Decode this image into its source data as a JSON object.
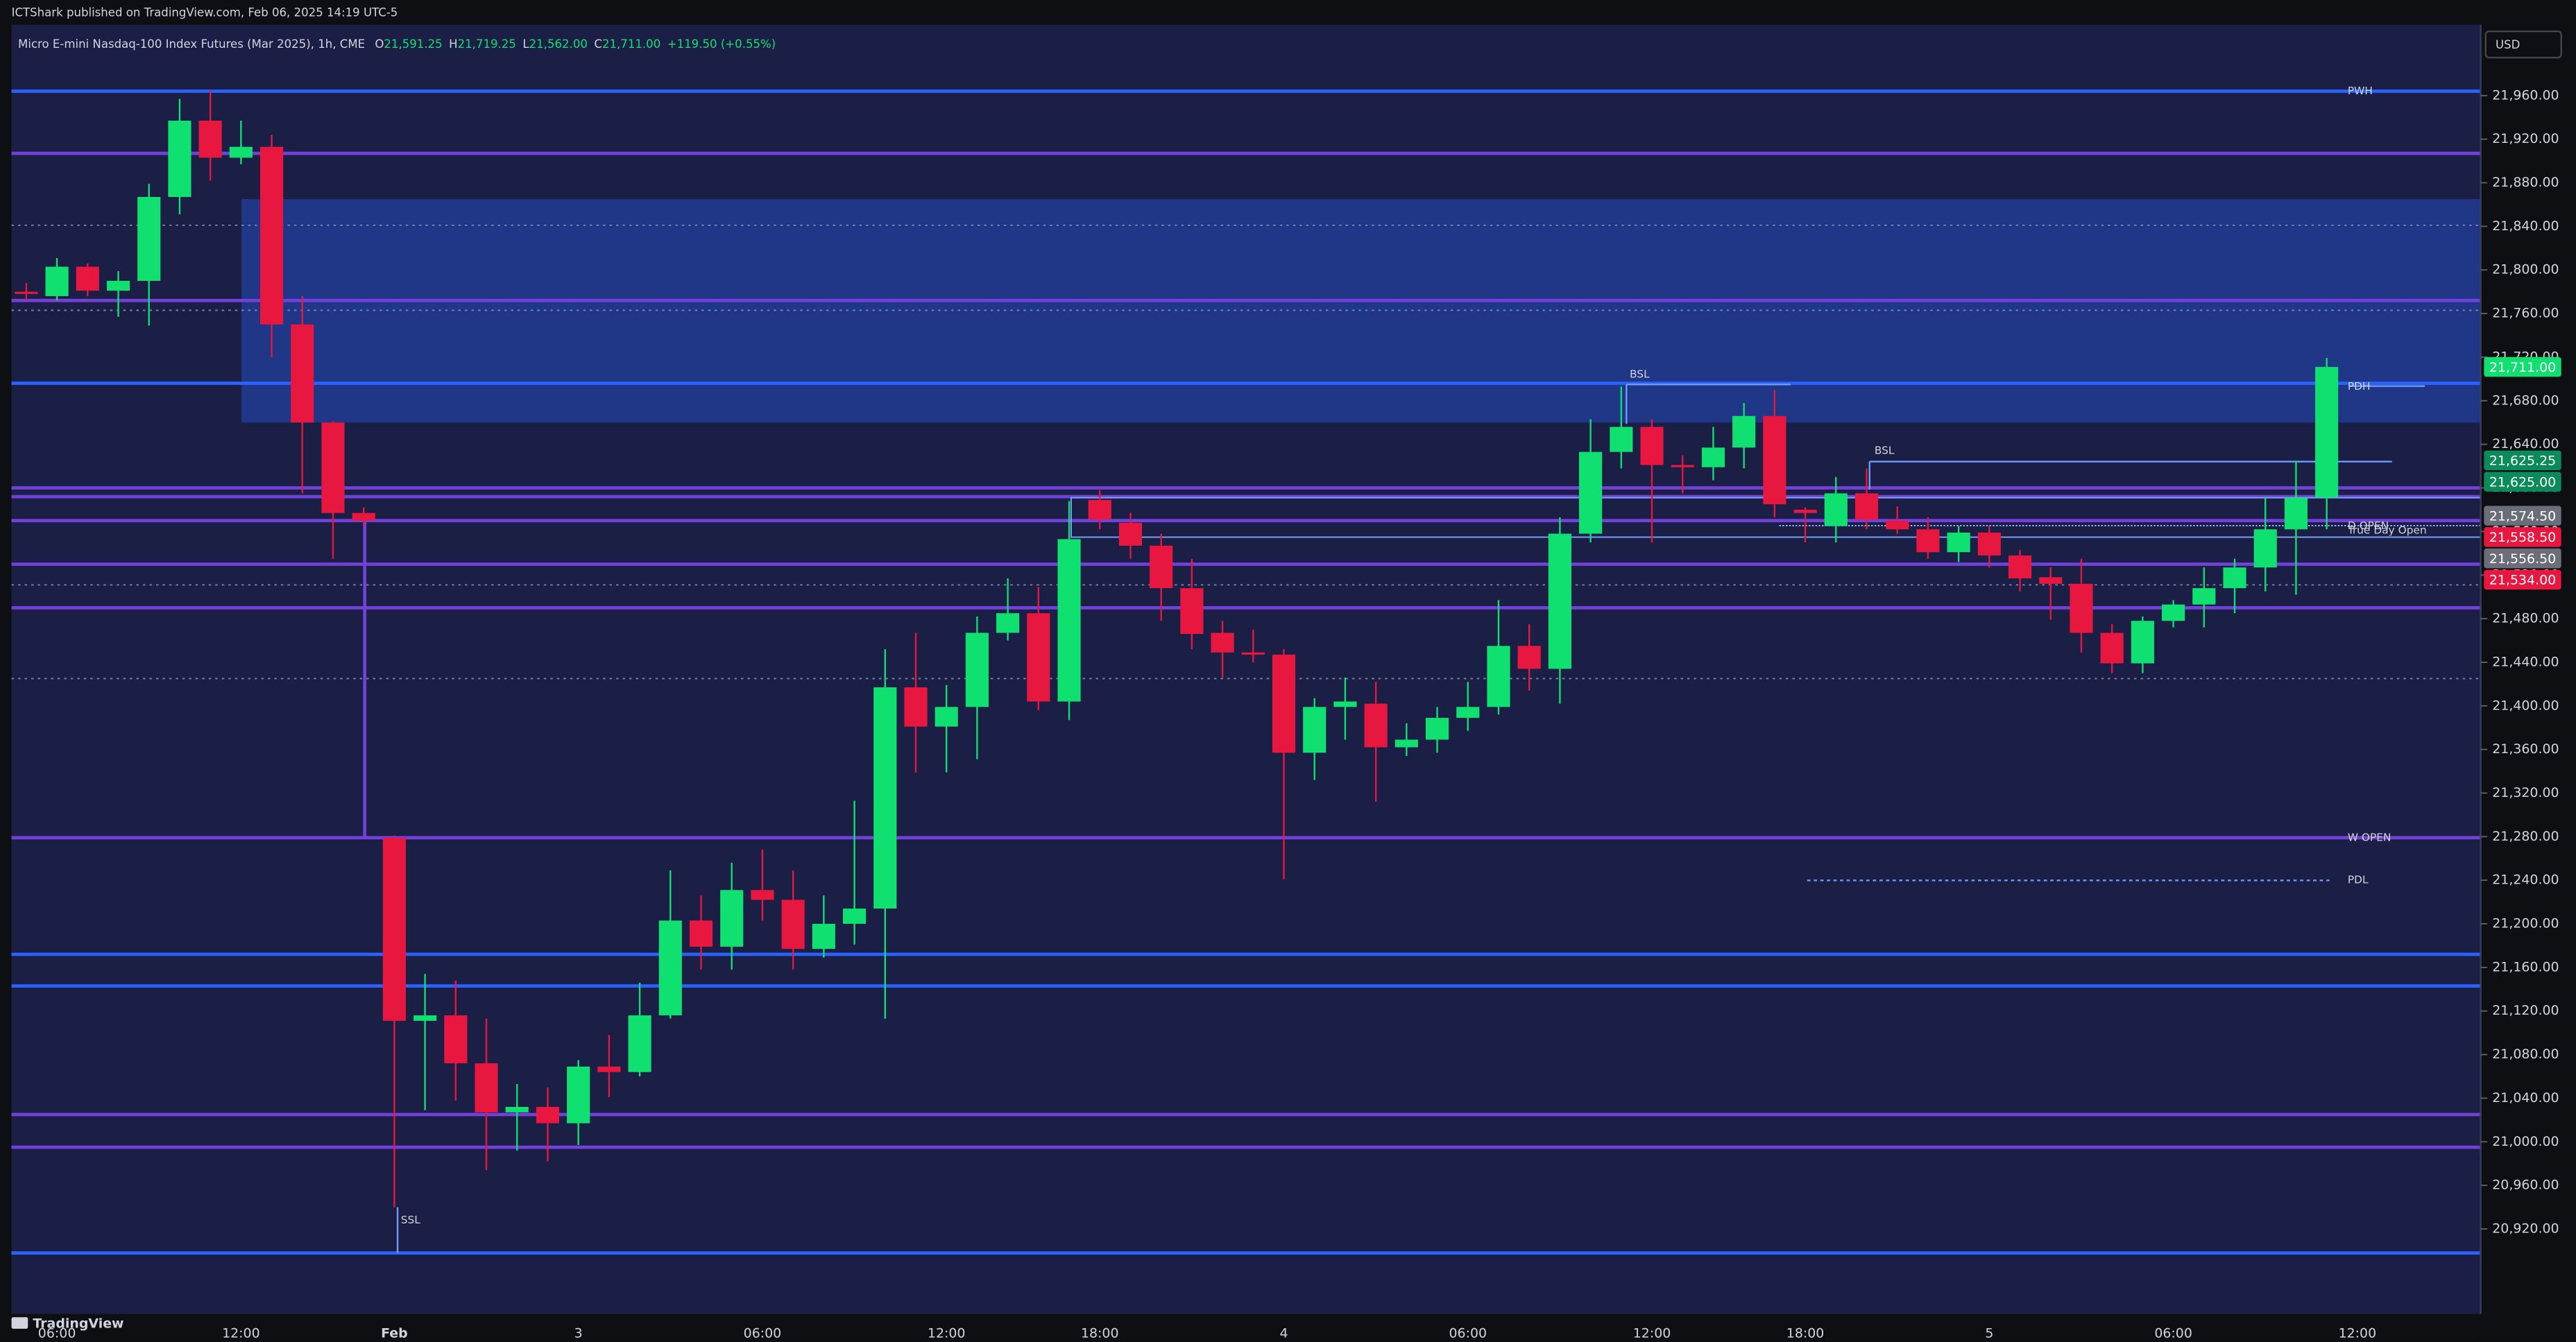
{
  "chart_data": {
    "type": "candlestick",
    "header": "ICTShark published on TradingView.com, Feb 06, 2025 14:19 UTC-5",
    "legend": {
      "symbol": "Micro E-mini Nasdaq-100 Index Futures (Mar 2025), 1h, CME",
      "items": [
        {
          "key": "O",
          "value": "21,591.25"
        },
        {
          "key": "H",
          "value": "21,719.25"
        },
        {
          "key": "L",
          "value": "21,562.00"
        },
        {
          "key": "C",
          "value": "21,711.00"
        }
      ],
      "change": "+119.50 (+0.55%)"
    },
    "currency": "USD",
    "footer": "TradingView",
    "up_color": "#0fe070",
    "down_color": "#e8173f",
    "categories": [
      null,
      "06:00",
      null,
      null,
      null,
      null,
      null,
      "12:00",
      null,
      null,
      null,
      null,
      "Feb",
      null,
      null,
      null,
      null,
      null,
      "3",
      null,
      null,
      null,
      null,
      null,
      "06:00",
      null,
      null,
      null,
      null,
      null,
      "12:00",
      null,
      null,
      null,
      null,
      "18:00",
      null,
      null,
      null,
      null,
      null,
      "4",
      null,
      null,
      null,
      null,
      null,
      "06:00",
      null,
      null,
      null,
      null,
      null,
      "12:00",
      null,
      null,
      null,
      null,
      "18:00",
      null,
      null,
      null,
      null,
      null,
      "5",
      null,
      null,
      null,
      null,
      null,
      "06:00",
      null,
      null,
      null,
      null,
      null,
      "12:00"
    ],
    "open": [
      21780,
      21776,
      21803,
      21781,
      21790,
      21867,
      21937,
      21903,
      21913,
      21750,
      21660,
      21577,
      21279,
      21111,
      21116,
      21072,
      21027,
      21032,
      21017,
      21069,
      21064,
      21116,
      21203,
      21179,
      21231,
      21222,
      21177,
      21200,
      21214,
      21417,
      21381,
      21399,
      21467,
      21485,
      21404,
      21589,
      21568,
      21547,
      21508,
      21467,
      21449,
      21447,
      21357,
      21399,
      21402,
      21362,
      21369,
      21389,
      21399,
      21455,
      21434,
      21558,
      21633,
      21656,
      21621,
      21619,
      21637,
      21666,
      21580,
      21565,
      21595,
      21570,
      21562,
      21541,
      21559,
      21538,
      21518,
      21512,
      21467,
      21439,
      21478,
      21493,
      21508,
      21527,
      21562,
      21591.25,
      null
    ],
    "high": [
      21788,
      21811,
      21806,
      21799,
      21879,
      21957,
      21965,
      21937,
      21924,
      21776,
      21661,
      21582,
      21281,
      21154,
      21148,
      21113,
      21053,
      21050,
      21075,
      21098,
      21146,
      21249,
      21226,
      21256,
      21268,
      21249,
      21226,
      21313,
      21452,
      21467,
      21419,
      21482,
      21517,
      21509,
      21588,
      21598,
      21577,
      21558,
      21535,
      21478,
      21470,
      21452,
      21407,
      21426,
      21422,
      21384,
      21399,
      21422,
      21497,
      21475,
      21573,
      21663,
      21693,
      21663,
      21630,
      21656,
      21678,
      21690,
      21582,
      21610,
      21618,
      21583,
      21573,
      21565,
      21565,
      21543,
      21527,
      21535,
      21475,
      21482,
      21497,
      21527,
      21535,
      21591,
      21625,
      21719.25,
      null
    ],
    "low": [
      21772,
      21772,
      21776,
      21757,
      21749,
      21851,
      21882,
      21897,
      21720,
      21595,
      21535,
      21565,
      20940,
      21029,
      21038,
      20974,
      20992,
      20982,
      20997,
      21041,
      21060,
      21113,
      21158,
      21158,
      21203,
      21158,
      21169,
      21181,
      21113,
      21339,
      21339,
      21351,
      21460,
      21396,
      21387,
      21562,
      21535,
      21478,
      21452,
      21426,
      21440,
      21241,
      21332,
      21369,
      21312,
      21354,
      21357,
      21377,
      21392,
      21414,
      21402,
      21550,
      21618,
      21550,
      21595,
      21607,
      21618,
      21573,
      21550,
      21550,
      21562,
      21558,
      21535,
      21532,
      21527,
      21505,
      21479,
      21449,
      21430,
      21430,
      21472,
      21472,
      21485,
      21505,
      21502,
      21562,
      null
    ],
    "close": [
      21778,
      21803,
      21781,
      21790,
      21867,
      21937,
      21903,
      21913,
      21750,
      21660,
      21577,
      21570,
      21111,
      21116,
      21072,
      21027,
      21032,
      21017,
      21069,
      21064,
      21116,
      21203,
      21179,
      21231,
      21222,
      21177,
      21200,
      21214,
      21417,
      21381,
      21399,
      21467,
      21485,
      21404,
      21553,
      21571,
      21547,
      21508,
      21466,
      21449,
      21447,
      21357,
      21399,
      21404,
      21362,
      21369,
      21389,
      21399,
      21455,
      21434,
      21558,
      21633,
      21656,
      21621,
      21619,
      21637,
      21666,
      21585,
      21577,
      21595,
      21571,
      21562,
      21541,
      21559,
      21538,
      21517,
      21512,
      21467,
      21439,
      21478,
      21493,
      21508,
      21527,
      21562,
      21591,
      21711,
      null
    ],
    "ylim": [
      20842,
      22025
    ],
    "yticks": [
      {
        "value": 20920,
        "label": "20,920.00"
      },
      {
        "value": 20960,
        "label": "20,960.00"
      },
      {
        "value": 21000,
        "label": "21,000.00"
      },
      {
        "value": 21040,
        "label": "21,040.00"
      },
      {
        "value": 21080,
        "label": "21,080.00"
      },
      {
        "value": 21120,
        "label": "21,120.00"
      },
      {
        "value": 21160,
        "label": "21,160.00"
      },
      {
        "value": 21200,
        "label": "21,200.00"
      },
      {
        "value": 21240,
        "label": "21,240.00"
      },
      {
        "value": 21280,
        "label": "21,280.00"
      },
      {
        "value": 21320,
        "label": "21,320.00"
      },
      {
        "value": 21360,
        "label": "21,360.00"
      },
      {
        "value": 21400,
        "label": "21,400.00"
      },
      {
        "value": 21440,
        "label": "21,440.00"
      },
      {
        "value": 21480,
        "label": "21,480.00"
      },
      {
        "value": 21520,
        "label": "21,520.00"
      },
      {
        "value": 21560,
        "label": "21,560.00"
      },
      {
        "value": 21600,
        "label": "21,600.00"
      },
      {
        "value": 21640,
        "label": "21,640.00"
      },
      {
        "value": 21680,
        "label": "21,680.00"
      },
      {
        "value": 21720,
        "label": "21,720.00"
      },
      {
        "value": 21760,
        "label": "21,760.00"
      },
      {
        "value": 21800,
        "label": "21,800.00"
      },
      {
        "value": 21840,
        "label": "21,840.00"
      },
      {
        "value": 21880,
        "label": "21,880.00"
      },
      {
        "value": 21920,
        "label": "21,920.00"
      },
      {
        "value": 21960,
        "label": "21,960.00"
      }
    ],
    "zone": {
      "top": 21865,
      "bottom": 21660,
      "color": "#2962ff"
    },
    "levels": [
      {
        "value": 21964,
        "color": "#2962ff",
        "style": "solid"
      },
      {
        "value": 21907,
        "color": "#7241d9",
        "style": "solid"
      },
      {
        "value": 21841,
        "color": "#7b80a8",
        "style": "dotted"
      },
      {
        "value": 21772,
        "color": "#7241d9",
        "style": "solid"
      },
      {
        "value": 21763,
        "color": "#7b80a8",
        "style": "dotted"
      },
      {
        "value": 21696,
        "color": "#2962ff",
        "style": "solid"
      },
      {
        "value": 21600,
        "color": "#7241d9",
        "style": "solid"
      },
      {
        "value": 21592,
        "color": "#7241d9",
        "style": "solid"
      },
      {
        "value": 21570,
        "color": "#7241d9",
        "style": "solid"
      },
      {
        "value": 21530,
        "color": "#7241d9",
        "style": "solid"
      },
      {
        "value": 21511,
        "color": "#7b80a8",
        "style": "dotted"
      },
      {
        "value": 21490,
        "color": "#7241d9",
        "style": "solid"
      },
      {
        "value": 21425,
        "color": "#7b80a8",
        "style": "dotted"
      },
      {
        "value": 21279,
        "color": "#7241d9",
        "style": "solid"
      },
      {
        "value": 21172,
        "color": "#2962ff",
        "style": "solid"
      },
      {
        "value": 21143,
        "color": "#2962ff",
        "style": "solid"
      },
      {
        "value": 21025,
        "color": "#7241d9",
        "style": "solid"
      },
      {
        "value": 20995,
        "color": "#7241d9",
        "style": "solid"
      },
      {
        "value": 20898,
        "color": "#2962ff",
        "style": "solid"
      }
    ],
    "annotations": [
      {
        "text": "PWH",
        "value": 21964
      },
      {
        "text": "PDH",
        "value": 21693
      },
      {
        "text": "D OPEN",
        "value": 21565
      },
      {
        "text": "True Day Open",
        "value": 21561
      },
      {
        "text": "W OPEN",
        "value": 21279
      },
      {
        "text": "PDL",
        "value": 21240
      },
      {
        "text": "BSL",
        "value": 21704
      },
      {
        "text": "BSL",
        "value": 21634
      },
      {
        "text": "SSL",
        "value": 20928
      }
    ],
    "price_tags": [
      {
        "value": 21711,
        "label": "21,711.00",
        "color": "#0fe070"
      },
      {
        "value": 21625.25,
        "label": "21,625.25",
        "color": "#0b8a5c"
      },
      {
        "value": 21625,
        "label": "21,625.00",
        "color": "#0b8a5c"
      },
      {
        "value": 21574.5,
        "label": "21,574.50",
        "color": "#6b6e78"
      },
      {
        "value": 21558.5,
        "label": "21,558.50",
        "color": "#e8173f"
      },
      {
        "value": 21556.5,
        "label": "21,556.50",
        "color": "#6b6e78"
      },
      {
        "value": 21534,
        "label": "21,534.00",
        "color": "#e8173f"
      }
    ]
  }
}
